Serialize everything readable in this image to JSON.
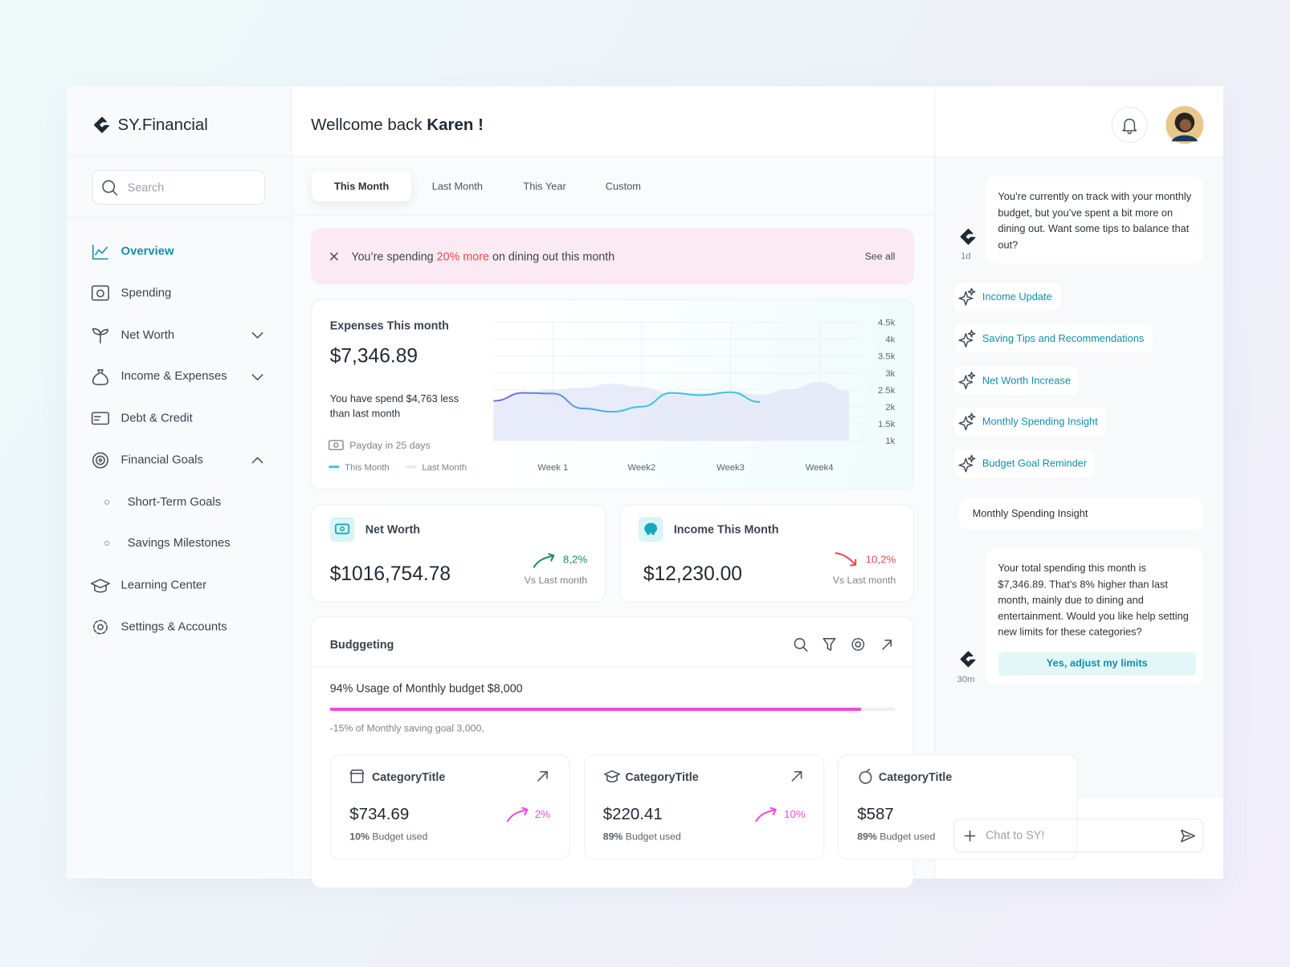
{
  "app": {
    "brand": "SY.Financial",
    "search_placeholder": "Search"
  },
  "nav": [
    "Overview",
    "Spending",
    "Net Worth",
    "Income & Expenses",
    "Debt & Credit",
    "Financial Goals",
    "Short-Term Goals",
    "Savings Milestones",
    "Learning Center",
    "Settings & Accounts"
  ],
  "header": {
    "greeting": "Wellcome back",
    "name": "Karen !"
  },
  "tabs": [
    "This Month",
    "Last Month",
    "This Year",
    "Custom"
  ],
  "alert": {
    "prefix": "You’re spending",
    "highlight": "20% more",
    "suffix": "on dining out this month",
    "action": "See all"
  },
  "expenses": {
    "title": "Expenses This month",
    "amount": "$7,346.89",
    "note": "You have spend $4,763 less than last month",
    "payday": "Payday in 25 days",
    "chart_data": {
      "type": "line",
      "categories": [
        null,
        null,
        "Week 1",
        null,
        null,
        "Week2",
        null,
        null,
        "Week3",
        null,
        null,
        "Week4",
        null
      ],
      "series": [
        {
          "name": "This Month",
          "color": "#3fc6d6",
          "values": [
            2170,
            2410,
            2390,
            1950,
            1850,
            2000,
            2410,
            2340,
            2430,
            2140,
            null,
            null,
            null
          ]
        },
        {
          "name": "Last Month",
          "color": "#e4e7f8",
          "values": [
            2120,
            2410,
            2510,
            2560,
            2680,
            2580,
            2390,
            2410,
            2460,
            2360,
            2510,
            2730,
            2460
          ]
        }
      ],
      "ylim": [
        1000,
        4500
      ],
      "yticks": [
        {
          "value": 1000,
          "label": "1k"
        },
        {
          "value": 1500,
          "label": "1.5k"
        },
        {
          "value": 2000,
          "label": "2k"
        },
        {
          "value": 2500,
          "label": "2.5k"
        },
        {
          "value": 3000,
          "label": "3k"
        },
        {
          "value": 3500,
          "label": "3.5k"
        },
        {
          "value": 4000,
          "label": "4k"
        },
        {
          "value": 4500,
          "label": "4.5k"
        }
      ],
      "grid": true
    }
  },
  "metrics": [
    {
      "title": "Net Worth",
      "amount": "$1016,754.78",
      "change": "8,2%",
      "compare": "Vs Last month"
    },
    {
      "title": "Income This Month",
      "amount": "$12,230.00",
      "change": "10,2%",
      "compare": "Vs Last month"
    }
  ],
  "budget": {
    "title": "Budggeting",
    "usage": "94% Usage of Monthly budget $8,000",
    "usage_percent": 94,
    "note": "-15% of Monthly saving goal 3,000,",
    "categories": [
      {
        "title": "CategoryTitle",
        "amount": "$734.69",
        "change": "2%",
        "used": "10%",
        "used_label": "Budget used"
      },
      {
        "title": "CategoryTitle",
        "amount": "$220.41",
        "change": "10%",
        "used": "89%",
        "used_label": "Budget used"
      },
      {
        "title": "CategoryTitle",
        "amount": "$587",
        "change": "",
        "used": "89%",
        "used_label": "Budget used"
      }
    ]
  },
  "chat": {
    "message": {
      "text": "You’re currently on track with your monthly budget, but you’ve spent a bit more on dining out. Want some tips to balance that out?",
      "time": "1d"
    },
    "suggestions": [
      "Income Update",
      "Saving Tips and Recommendations",
      "Net Worth Increase",
      "Monthly Spending Insight",
      "Budget Goal Reminder"
    ],
    "selected": "Monthly Spending Insight",
    "reply": {
      "text": "Your total spending this month is $7,346.89.  That’s 8% higher than last month, mainly due to dining and entertainment. Would you like help setting new limits for these categories?",
      "action": "Yes, adjust my limits",
      "time": "30m"
    },
    "input_placeholder": "Chat to SY!"
  }
}
